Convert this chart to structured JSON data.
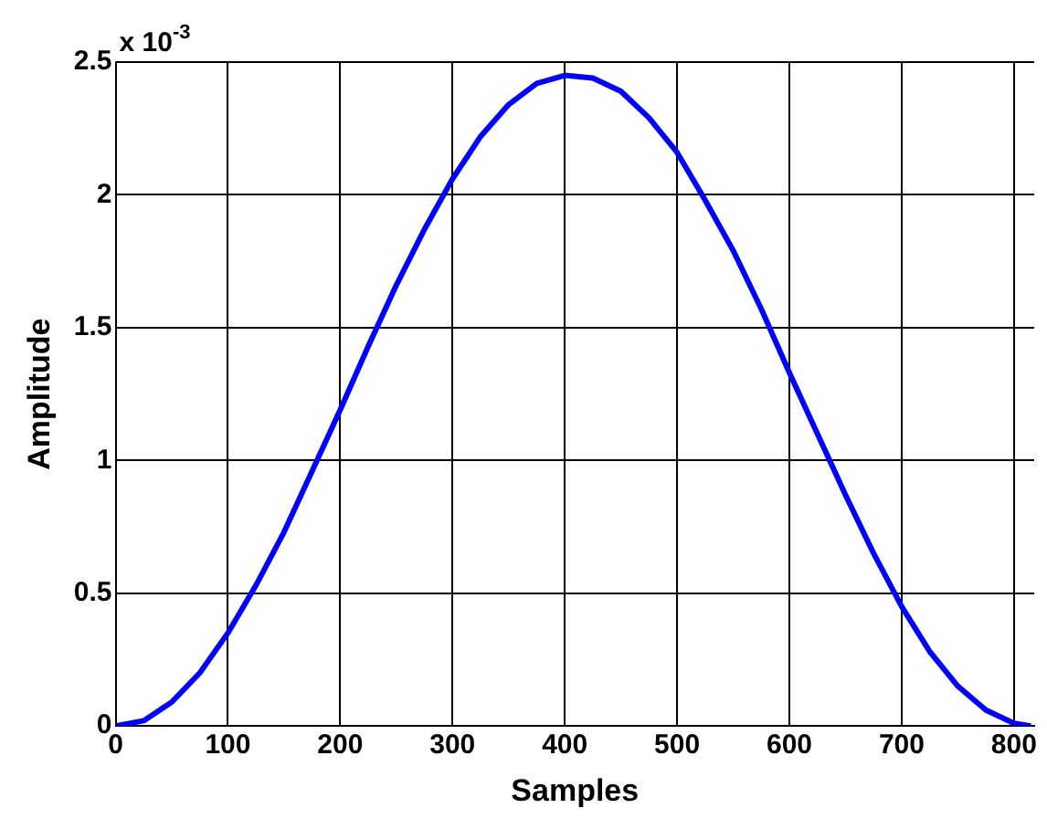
{
  "chart_data": {
    "type": "line",
    "xlabel": "Samples",
    "ylabel": "Amplitude",
    "annotations": [
      "x 10$^{-3}$"
    ],
    "x": [
      0,
      25,
      50,
      75,
      100,
      125,
      150,
      175,
      200,
      225,
      250,
      275,
      300,
      325,
      350,
      375,
      400,
      425,
      450,
      475,
      500,
      525,
      550,
      575,
      600,
      625,
      650,
      675,
      700,
      725,
      750,
      775,
      800,
      815
    ],
    "series": [
      {
        "color": "#0000ff",
        "values": [
          0,
          0.02,
          0.09,
          0.2,
          0.35,
          0.53,
          0.73,
          0.96,
          1.19,
          1.43,
          1.66,
          1.87,
          2.06,
          2.22,
          2.34,
          2.42,
          2.45,
          2.44,
          2.39,
          2.29,
          2.16,
          1.98,
          1.79,
          1.57,
          1.33,
          1.1,
          0.87,
          0.65,
          0.45,
          0.28,
          0.15,
          0.06,
          0.01,
          0
        ]
      }
    ],
    "xlim": [
      0,
      818
    ],
    "xticks": [
      0,
      100,
      200,
      300,
      400,
      500,
      600,
      700,
      800
    ],
    "ylim": [
      0,
      2.5
    ],
    "yticks": [
      0,
      0.5,
      1,
      1.5,
      2,
      2.5
    ],
    "grid": true,
    "legend": false,
    "marker": "none",
    "line_style": "solid"
  }
}
